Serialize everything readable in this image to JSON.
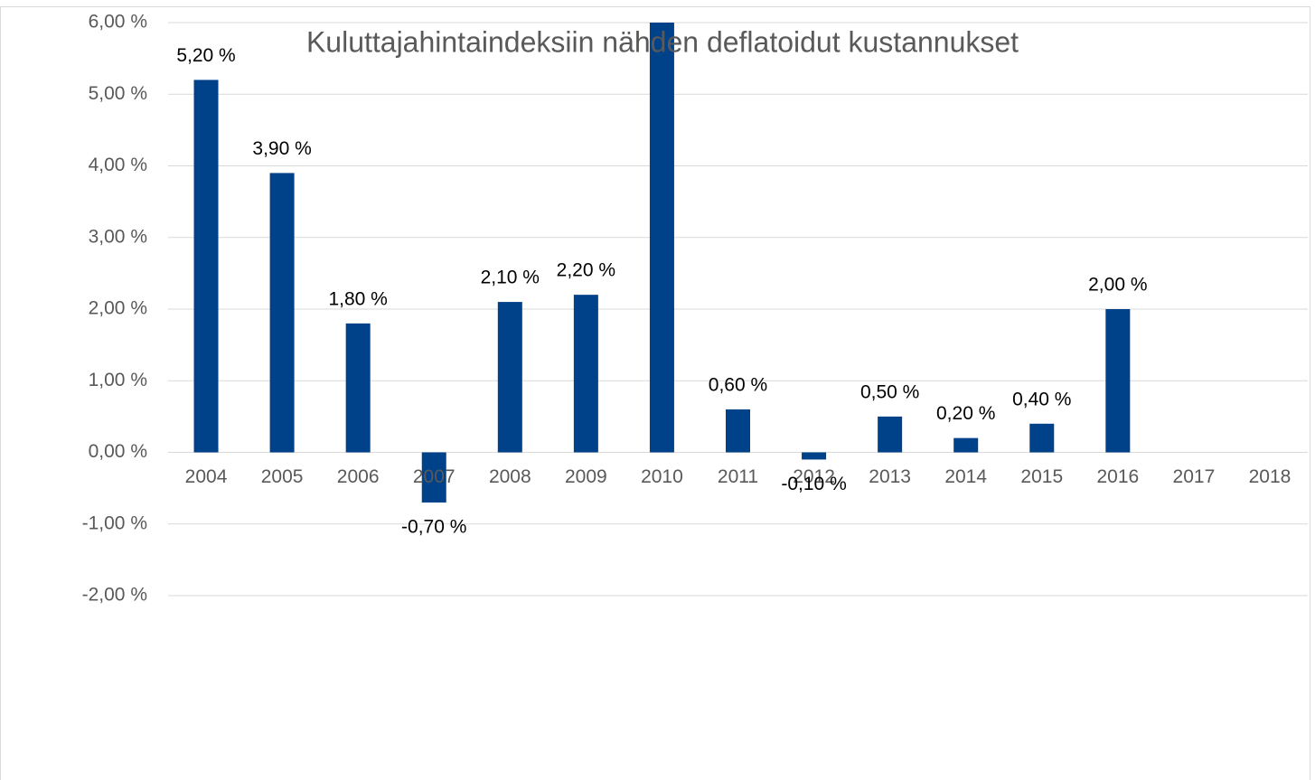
{
  "chart_data": {
    "type": "bar",
    "title": "Kuluttajahintaindeksiin nähden deflatoidut kustannukset",
    "categories": [
      "2004",
      "2005",
      "2006",
      "2007",
      "2008",
      "2009",
      "2010",
      "2011",
      "2012",
      "2013",
      "2014",
      "2015",
      "2016",
      "2017",
      "2018"
    ],
    "values": [
      5.2,
      3.9,
      1.8,
      -0.7,
      2.1,
      2.2,
      6.0,
      0.6,
      -0.1,
      0.5,
      0.2,
      0.4,
      2.0,
      null,
      null
    ],
    "value_labels": [
      "5,20 %",
      "3,90 %",
      "1,80 %",
      "-0,70 %",
      "2,10 %",
      "2,20 %",
      null,
      "0,60 %",
      "-0,10 %",
      "0,50 %",
      "0,20 %",
      "0,40 %",
      "2,00 %",
      null,
      null
    ],
    "color": "#004289",
    "ylim": [
      -2,
      6
    ],
    "yticks": [
      {
        "value": -2,
        "label": "-2,00 %"
      },
      {
        "value": -1,
        "label": "-1,00 %"
      },
      {
        "value": 0,
        "label": "0,00 %"
      },
      {
        "value": 1,
        "label": "1,00 %"
      },
      {
        "value": 2,
        "label": "2,00 %"
      },
      {
        "value": 3,
        "label": "3,00 %"
      },
      {
        "value": 4,
        "label": "4,00 %"
      },
      {
        "value": 5,
        "label": "5,00 %"
      },
      {
        "value": 6,
        "label": "6,00 %"
      }
    ],
    "grid": true
  }
}
